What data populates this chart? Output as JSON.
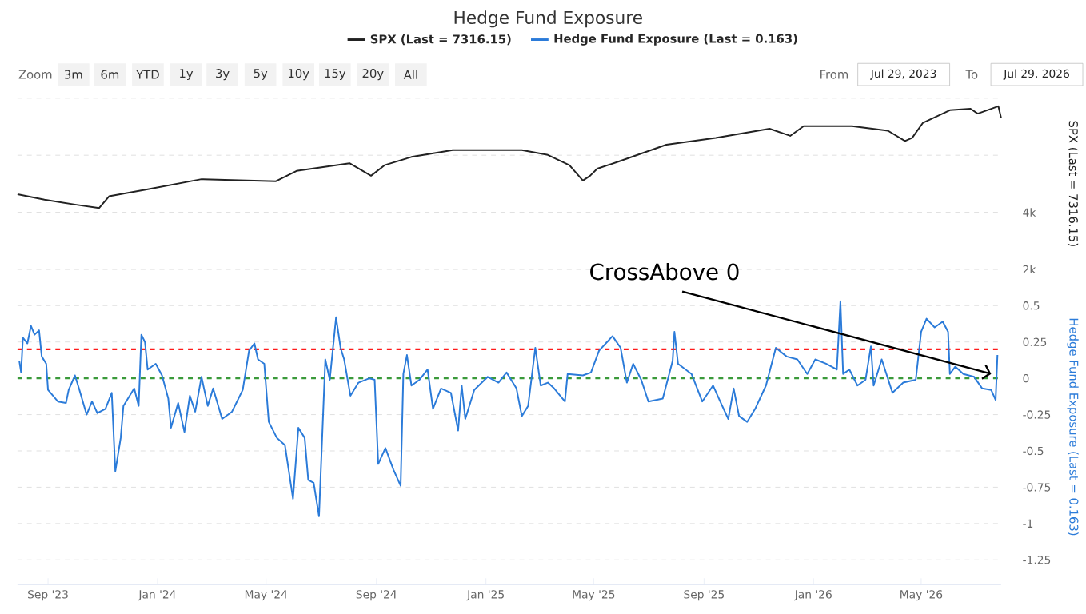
{
  "chart_data": [
    {
      "type": "line",
      "title": "Hedge Fund Exposure",
      "ylabel": "SPX (Last = 7316.15)",
      "legend": "top",
      "grid": "y",
      "tick_labels": "y",
      "annotations": [
        "Zoom",
        "3m",
        "6m",
        "YTD",
        "1y",
        "3y",
        "5y",
        "10y",
        "15y",
        "20y",
        "All",
        "From",
        "Jul 29, 2023",
        "To",
        "Jul 29, 2026"
      ],
      "xlim": [
        "2023-07-29",
        "2026-07-29"
      ],
      "ylim": [
        2000,
        8000
      ],
      "yticks": [
        {
          "value": 2000,
          "label": "2k"
        },
        {
          "value": 4000,
          "label": "4k"
        },
        {
          "value": 6000,
          "label": null
        },
        {
          "value": 8000,
          "label": null
        }
      ],
      "series": [
        {
          "name": "SPX (Last = 7316.15)",
          "color": "#222222",
          "x": [
            "2023-07-29",
            "2023-08-28",
            "2023-10-01",
            "2023-10-28",
            "2023-11-08",
            "2023-12-20",
            "2024-02-19",
            "2024-05-12",
            "2024-06-04",
            "2024-08-02",
            "2024-08-26",
            "2024-09-10",
            "2024-10-10",
            "2024-11-25",
            "2024-12-26",
            "2025-02-10",
            "2025-03-11",
            "2025-04-04",
            "2025-04-19",
            "2025-04-27",
            "2025-05-05",
            "2025-05-29",
            "2025-07-21",
            "2025-09-14",
            "2025-11-13",
            "2025-12-06",
            "2025-12-21",
            "2026-02-13",
            "2026-03-25",
            "2026-04-13",
            "2026-04-21",
            "2026-05-03",
            "2026-06-02",
            "2026-06-25",
            "2026-07-03",
            "2026-07-26",
            "2026-07-29"
          ],
          "values": [
            4630,
            4440,
            4270,
            4150,
            4560,
            4800,
            5160,
            5090,
            5450,
            5720,
            5280,
            5650,
            5940,
            6180,
            6180,
            6180,
            6010,
            5650,
            5110,
            5280,
            5530,
            5780,
            6370,
            6610,
            6930,
            6680,
            7020,
            7020,
            6860,
            6500,
            6610,
            7140,
            7580,
            7630,
            7460,
            7720,
            7320
          ]
        }
      ]
    },
    {
      "type": "line",
      "ylabel": "Hedge Fund Exposure (Last = 0.163)",
      "legend": "top",
      "grid": "y",
      "xlim": [
        "2023-07-29",
        "2026-07-29"
      ],
      "ylim": [
        -1.42,
        0.75
      ],
      "xticks": [
        {
          "value": "2023-09-01",
          "label": "Sep '23"
        },
        {
          "value": "2024-01-01",
          "label": "Jan '24"
        },
        {
          "value": "2024-05-01",
          "label": "May '24"
        },
        {
          "value": "2024-09-01",
          "label": "Sep '24"
        },
        {
          "value": "2025-01-01",
          "label": "Jan '25"
        },
        {
          "value": "2025-05-01",
          "label": "May '25"
        },
        {
          "value": "2025-09-01",
          "label": "Sep '25"
        },
        {
          "value": "2026-01-01",
          "label": "Jan '26"
        },
        {
          "value": "2026-05-01",
          "label": "May '26"
        }
      ],
      "yticks": [
        {
          "value": -1.25,
          "label": "-1.25"
        },
        {
          "value": -1,
          "label": "-1"
        },
        {
          "value": -0.75,
          "label": "-0.75"
        },
        {
          "value": -0.5,
          "label": "-0.5"
        },
        {
          "value": -0.25,
          "label": "-0.25"
        },
        {
          "value": 0,
          "label": "0"
        },
        {
          "value": 0.25,
          "label": "0.25"
        },
        {
          "value": 0.5,
          "label": "0.5"
        },
        {
          "value": 0.75,
          "label": null
        }
      ],
      "ref_lines": [
        {
          "axis": "y",
          "value": 0.2,
          "color": "#ff1a1a",
          "line_style": "dashed"
        },
        {
          "axis": "y",
          "value": 0,
          "color": "#3a9a3a",
          "line_style": "dashed"
        }
      ],
      "annotations": [
        {
          "text": "CrossAbove 0",
          "x": "2026-07-18",
          "y": 0.03
        }
      ],
      "series": [
        {
          "name": "Hedge Fund Exposure (Last = 0.163)",
          "color": "#2b7bd9",
          "x": [
            "2023-07-31",
            "2023-08-02",
            "2023-08-04",
            "2023-08-09",
            "2023-08-13",
            "2023-08-17",
            "2023-08-22",
            "2023-08-25",
            "2023-08-30",
            "2023-09-01",
            "2023-09-12",
            "2023-09-21",
            "2023-09-24",
            "2023-10-01",
            "2023-10-06",
            "2023-10-14",
            "2023-10-20",
            "2023-10-26",
            "2023-11-04",
            "2023-11-11",
            "2023-11-15",
            "2023-11-21",
            "2023-11-24",
            "2023-12-06",
            "2023-12-11",
            "2023-12-14",
            "2023-12-18",
            "2023-12-21",
            "2023-12-30",
            "2024-01-06",
            "2024-01-13",
            "2024-01-16",
            "2024-01-24",
            "2024-01-31",
            "2024-02-06",
            "2024-02-12",
            "2024-02-19",
            "2024-02-26",
            "2024-03-03",
            "2024-03-13",
            "2024-03-24",
            "2024-04-05",
            "2024-04-12",
            "2024-04-18",
            "2024-04-22",
            "2024-04-29",
            "2024-05-04",
            "2024-05-13",
            "2024-05-22",
            "2024-05-31",
            "2024-06-06",
            "2024-06-13",
            "2024-06-17",
            "2024-06-23",
            "2024-06-29",
            "2024-07-06",
            "2024-07-11",
            "2024-07-18",
            "2024-07-23",
            "2024-07-27",
            "2024-08-03",
            "2024-08-12",
            "2024-08-24",
            "2024-08-30",
            "2024-09-03",
            "2024-09-11",
            "2024-09-20",
            "2024-09-28",
            "2024-10-01",
            "2024-10-05",
            "2024-10-10",
            "2024-10-19",
            "2024-10-28",
            "2024-11-03",
            "2024-11-12",
            "2024-11-23",
            "2024-12-01",
            "2024-12-05",
            "2024-12-09",
            "2024-12-19",
            "2025-01-03",
            "2025-01-15",
            "2025-01-24",
            "2025-02-04",
            "2025-02-10",
            "2025-02-17",
            "2025-02-25",
            "2025-03-03",
            "2025-03-11",
            "2025-03-18",
            "2025-03-30",
            "2025-04-02",
            "2025-04-19",
            "2025-04-28",
            "2025-05-07",
            "2025-05-22",
            "2025-05-31",
            "2025-06-07",
            "2025-06-14",
            "2025-06-23",
            "2025-07-01",
            "2025-07-17",
            "2025-07-28",
            "2025-07-30",
            "2025-08-03",
            "2025-08-18",
            "2025-08-30",
            "2025-09-11",
            "2025-09-19",
            "2025-09-28",
            "2025-10-04",
            "2025-10-10",
            "2025-10-19",
            "2025-10-28",
            "2025-11-09",
            "2025-11-20",
            "2025-12-02",
            "2025-12-14",
            "2025-12-25",
            "2026-01-03",
            "2026-01-15",
            "2026-01-27",
            "2026-01-31",
            "2026-02-03",
            "2026-02-10",
            "2026-02-19",
            "2026-02-28",
            "2026-03-06",
            "2026-03-09",
            "2026-03-18",
            "2026-03-30",
            "2026-04-11",
            "2026-04-25",
            "2026-05-01",
            "2026-05-07",
            "2026-05-16",
            "2026-05-25",
            "2026-05-31",
            "2026-06-02",
            "2026-06-08",
            "2026-06-17",
            "2026-06-29",
            "2026-07-08",
            "2026-07-18",
            "2026-07-23",
            "2026-07-25"
          ],
          "values": [
            0.12,
            0.04,
            0.28,
            0.24,
            0.36,
            0.3,
            0.33,
            0.15,
            0.1,
            -0.08,
            -0.16,
            -0.17,
            -0.08,
            0.02,
            -0.08,
            -0.25,
            -0.16,
            -0.24,
            -0.21,
            -0.1,
            -0.64,
            -0.41,
            -0.19,
            -0.07,
            -0.19,
            0.3,
            0.25,
            0.06,
            0.1,
            0.02,
            -0.14,
            -0.34,
            -0.17,
            -0.37,
            -0.12,
            -0.23,
            0.01,
            -0.19,
            -0.07,
            -0.28,
            -0.23,
            -0.08,
            0.19,
            0.24,
            0.13,
            0.1,
            -0.3,
            -0.41,
            -0.46,
            -0.83,
            -0.34,
            -0.41,
            -0.7,
            -0.72,
            -0.95,
            0.13,
            -0.01,
            0.42,
            0.21,
            0.13,
            -0.12,
            -0.03,
            0.0,
            -0.01,
            -0.59,
            -0.48,
            -0.63,
            -0.74,
            0.03,
            0.16,
            -0.05,
            -0.01,
            0.06,
            -0.21,
            -0.07,
            -0.1,
            -0.36,
            -0.05,
            -0.28,
            -0.08,
            0.01,
            -0.03,
            0.04,
            -0.07,
            -0.26,
            -0.19,
            0.21,
            -0.05,
            -0.03,
            -0.07,
            -0.16,
            0.03,
            0.02,
            0.04,
            0.19,
            0.29,
            0.21,
            -0.03,
            0.1,
            -0.01,
            -0.16,
            -0.14,
            0.12,
            0.32,
            0.1,
            0.03,
            -0.16,
            -0.05,
            -0.16,
            -0.28,
            -0.07,
            -0.26,
            -0.3,
            -0.21,
            -0.05,
            0.21,
            0.15,
            0.13,
            0.03,
            0.13,
            0.1,
            0.06,
            0.53,
            0.03,
            0.06,
            -0.05,
            -0.01,
            0.22,
            -0.05,
            0.13,
            -0.1,
            -0.03,
            -0.01,
            0.32,
            0.41,
            0.35,
            0.39,
            0.32,
            0.03,
            0.08,
            0.03,
            0.01,
            -0.07,
            -0.08,
            -0.15,
            0.16
          ]
        }
      ]
    }
  ]
}
